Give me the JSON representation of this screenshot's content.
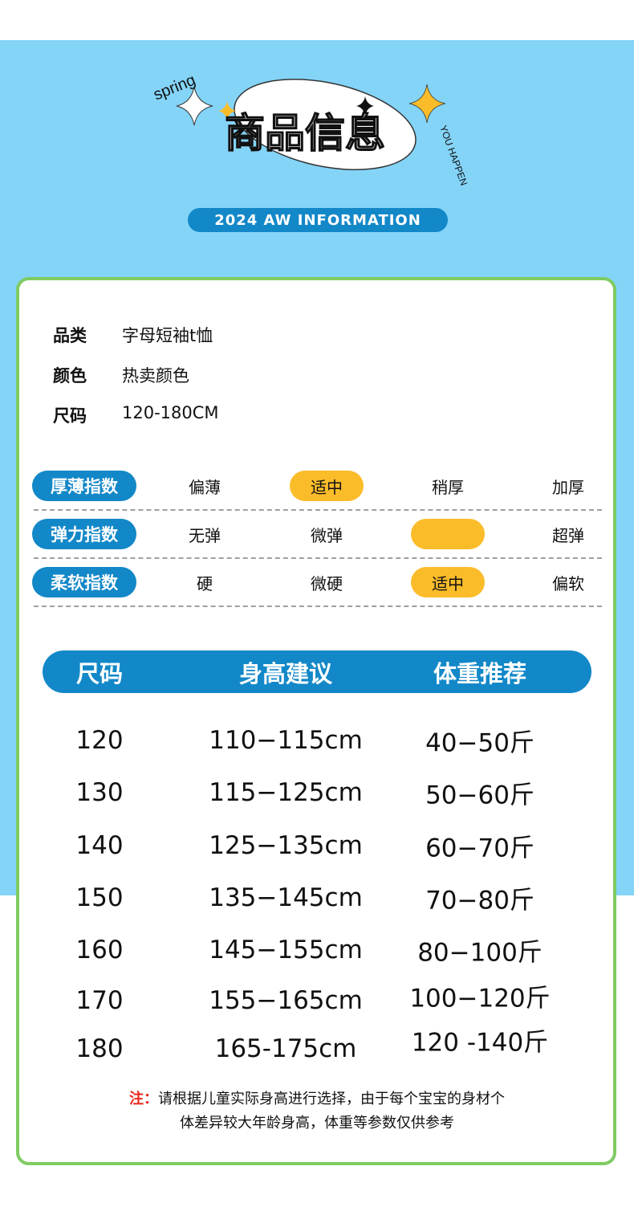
{
  "banner": {
    "script_text": "spring",
    "title": "商品信息",
    "arc_text": "YOU HAPPEN",
    "subtitle": "2024 AW INFORMATION"
  },
  "colors": {
    "sky": "#84d4f8",
    "brand_blue": "#1388c8",
    "highlight": "#fbbc2a",
    "border_green": "#7fcb62",
    "note_red": "#e8261e"
  },
  "info": [
    {
      "key": "品类",
      "value": "字母短袖t恤"
    },
    {
      "key": "颜色",
      "value": "热卖颜色"
    },
    {
      "key": "尺码",
      "value": "120-180CM"
    }
  ],
  "indices": [
    {
      "label": "厚薄指数",
      "options": [
        "偏薄",
        "适中",
        "稍厚",
        "加厚"
      ],
      "selected": 1
    },
    {
      "label": "弹力指数",
      "options": [
        "无弹",
        "微弹",
        "",
        "超弹"
      ],
      "selected": 2
    },
    {
      "label": "柔软指数",
      "options": [
        "硬",
        "微硬",
        "适中",
        "偏软"
      ],
      "selected": 2
    }
  ],
  "size_table": {
    "headers": [
      "尺码",
      "身高建议",
      "体重推荐"
    ],
    "rows": [
      [
        "120",
        "110−115cm",
        "40−50斤"
      ],
      [
        "130",
        "115−125cm",
        "50−60斤"
      ],
      [
        "140",
        "125−135cm",
        "60−70斤"
      ],
      [
        "150",
        "135−145cm",
        "70−80斤"
      ],
      [
        "160",
        "145−155cm",
        "80−100斤"
      ],
      [
        "170",
        "155−165cm",
        "100−120斤"
      ],
      [
        "180",
        "165-175cm",
        "120 -140斤"
      ]
    ]
  },
  "note": {
    "prefix": "注：",
    "line1": "请根据儿童实际身高进行选择，由于每个宝宝的身材个",
    "line2": "体差异较大年龄身高，体重等参数仅供参考"
  }
}
